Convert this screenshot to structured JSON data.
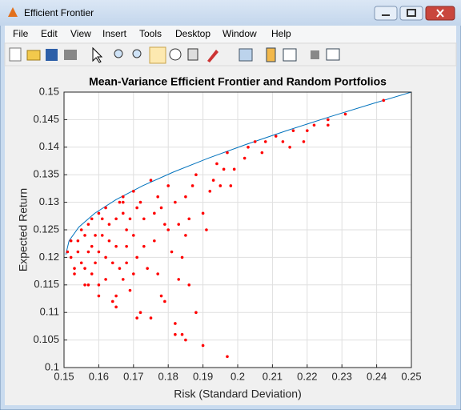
{
  "window": {
    "title": "Efficient Frontier"
  },
  "menu": [
    "File",
    "Edit",
    "View",
    "Insert",
    "Tools",
    "Desktop",
    "Window",
    "Help"
  ],
  "chart_data": {
    "type": "scatter",
    "title": "Mean-Variance Efficient Frontier and Random Portfolios",
    "xlabel": "Risk (Standard Deviation)",
    "ylabel": "Expected Return",
    "xlim": [
      0.15,
      0.25
    ],
    "ylim": [
      0.1,
      0.15
    ],
    "xticks": [
      0.15,
      0.16,
      0.17,
      0.18,
      0.19,
      0.2,
      0.21,
      0.22,
      0.23,
      0.24,
      0.25
    ],
    "yticks": [
      0.1,
      0.105,
      0.11,
      0.115,
      0.12,
      0.125,
      0.13,
      0.135,
      0.14,
      0.145,
      0.15
    ],
    "grid": true,
    "series": [
      {
        "style": "line",
        "color": "#0072bd",
        "x": [
          0.1505,
          0.15145,
          0.15426,
          0.15883,
          0.16502,
          0.17265,
          0.18154,
          0.19151,
          0.20241,
          0.2141,
          0.22644,
          0.23934,
          0.25
        ],
        "y": [
          0.1205,
          0.123,
          0.1255,
          0.128,
          0.1305,
          0.133,
          0.1355,
          0.138,
          0.1405,
          0.143,
          0.1455,
          0.148,
          0.15
        ]
      },
      {
        "style": "markers",
        "color": "#ff0000",
        "x": [
          0.152,
          0.153,
          0.154,
          0.153,
          0.156,
          0.155,
          0.158,
          0.157,
          0.16,
          0.155,
          0.159,
          0.162,
          0.158,
          0.165,
          0.162,
          0.163,
          0.16,
          0.167,
          0.165,
          0.166,
          0.171,
          0.167,
          0.168,
          0.169,
          0.17,
          0.171,
          0.172,
          0.173,
          0.182,
          0.175,
          0.176,
          0.177,
          0.178,
          0.179,
          0.18,
          0.181,
          0.182,
          0.183,
          0.185,
          0.186,
          0.19,
          0.188,
          0.197,
          0.19,
          0.192,
          0.194,
          0.195,
          0.197,
          0.199,
          0.205,
          0.202,
          0.211,
          0.207,
          0.216,
          0.213,
          0.222,
          0.22,
          0.226,
          0.231,
          0.242,
          0.156,
          0.164,
          0.167,
          0.159,
          0.161,
          0.162,
          0.165,
          0.166,
          0.168,
          0.17,
          0.172,
          0.174,
          0.176,
          0.178,
          0.18,
          0.182,
          0.184,
          0.186,
          0.188,
          0.191,
          0.193,
          0.196,
          0.198,
          0.203,
          0.208,
          0.215,
          0.219,
          0.226,
          0.151,
          0.152,
          0.157,
          0.157,
          0.16,
          0.16,
          0.163,
          0.164,
          0.167,
          0.169,
          0.171,
          0.173,
          0.175,
          0.177,
          0.179,
          0.183,
          0.185,
          0.187,
          0.154,
          0.156,
          0.158,
          0.161,
          0.165,
          0.168,
          0.17,
          0.184,
          0.185
        ],
        "y": [
          0.12,
          0.118,
          0.123,
          0.117,
          0.115,
          0.125,
          0.127,
          0.121,
          0.113,
          0.119,
          0.124,
          0.129,
          0.117,
          0.111,
          0.12,
          0.126,
          0.115,
          0.131,
          0.122,
          0.118,
          0.109,
          0.128,
          0.125,
          0.114,
          0.132,
          0.12,
          0.11,
          0.127,
          0.106,
          0.134,
          0.123,
          0.117,
          0.129,
          0.112,
          0.133,
          0.121,
          0.108,
          0.126,
          0.131,
          0.115,
          0.104,
          0.135,
          0.102,
          0.128,
          0.132,
          0.137,
          0.133,
          0.139,
          0.136,
          0.141,
          0.138,
          0.142,
          0.139,
          0.143,
          0.141,
          0.144,
          0.143,
          0.145,
          0.146,
          0.1485,
          0.124,
          0.112,
          0.13,
          0.119,
          0.127,
          0.116,
          0.113,
          0.13,
          0.119,
          0.124,
          0.13,
          0.118,
          0.128,
          0.113,
          0.125,
          0.13,
          0.12,
          0.127,
          0.11,
          0.125,
          0.134,
          0.136,
          0.133,
          0.14,
          0.141,
          0.14,
          0.141,
          0.144,
          0.121,
          0.123,
          0.115,
          0.126,
          0.128,
          0.121,
          0.123,
          0.119,
          0.116,
          0.127,
          0.129,
          0.122,
          0.109,
          0.131,
          0.126,
          0.116,
          0.124,
          0.133,
          0.121,
          0.118,
          0.122,
          0.124,
          0.127,
          0.122,
          0.117,
          0.106,
          0.105
        ]
      }
    ]
  }
}
